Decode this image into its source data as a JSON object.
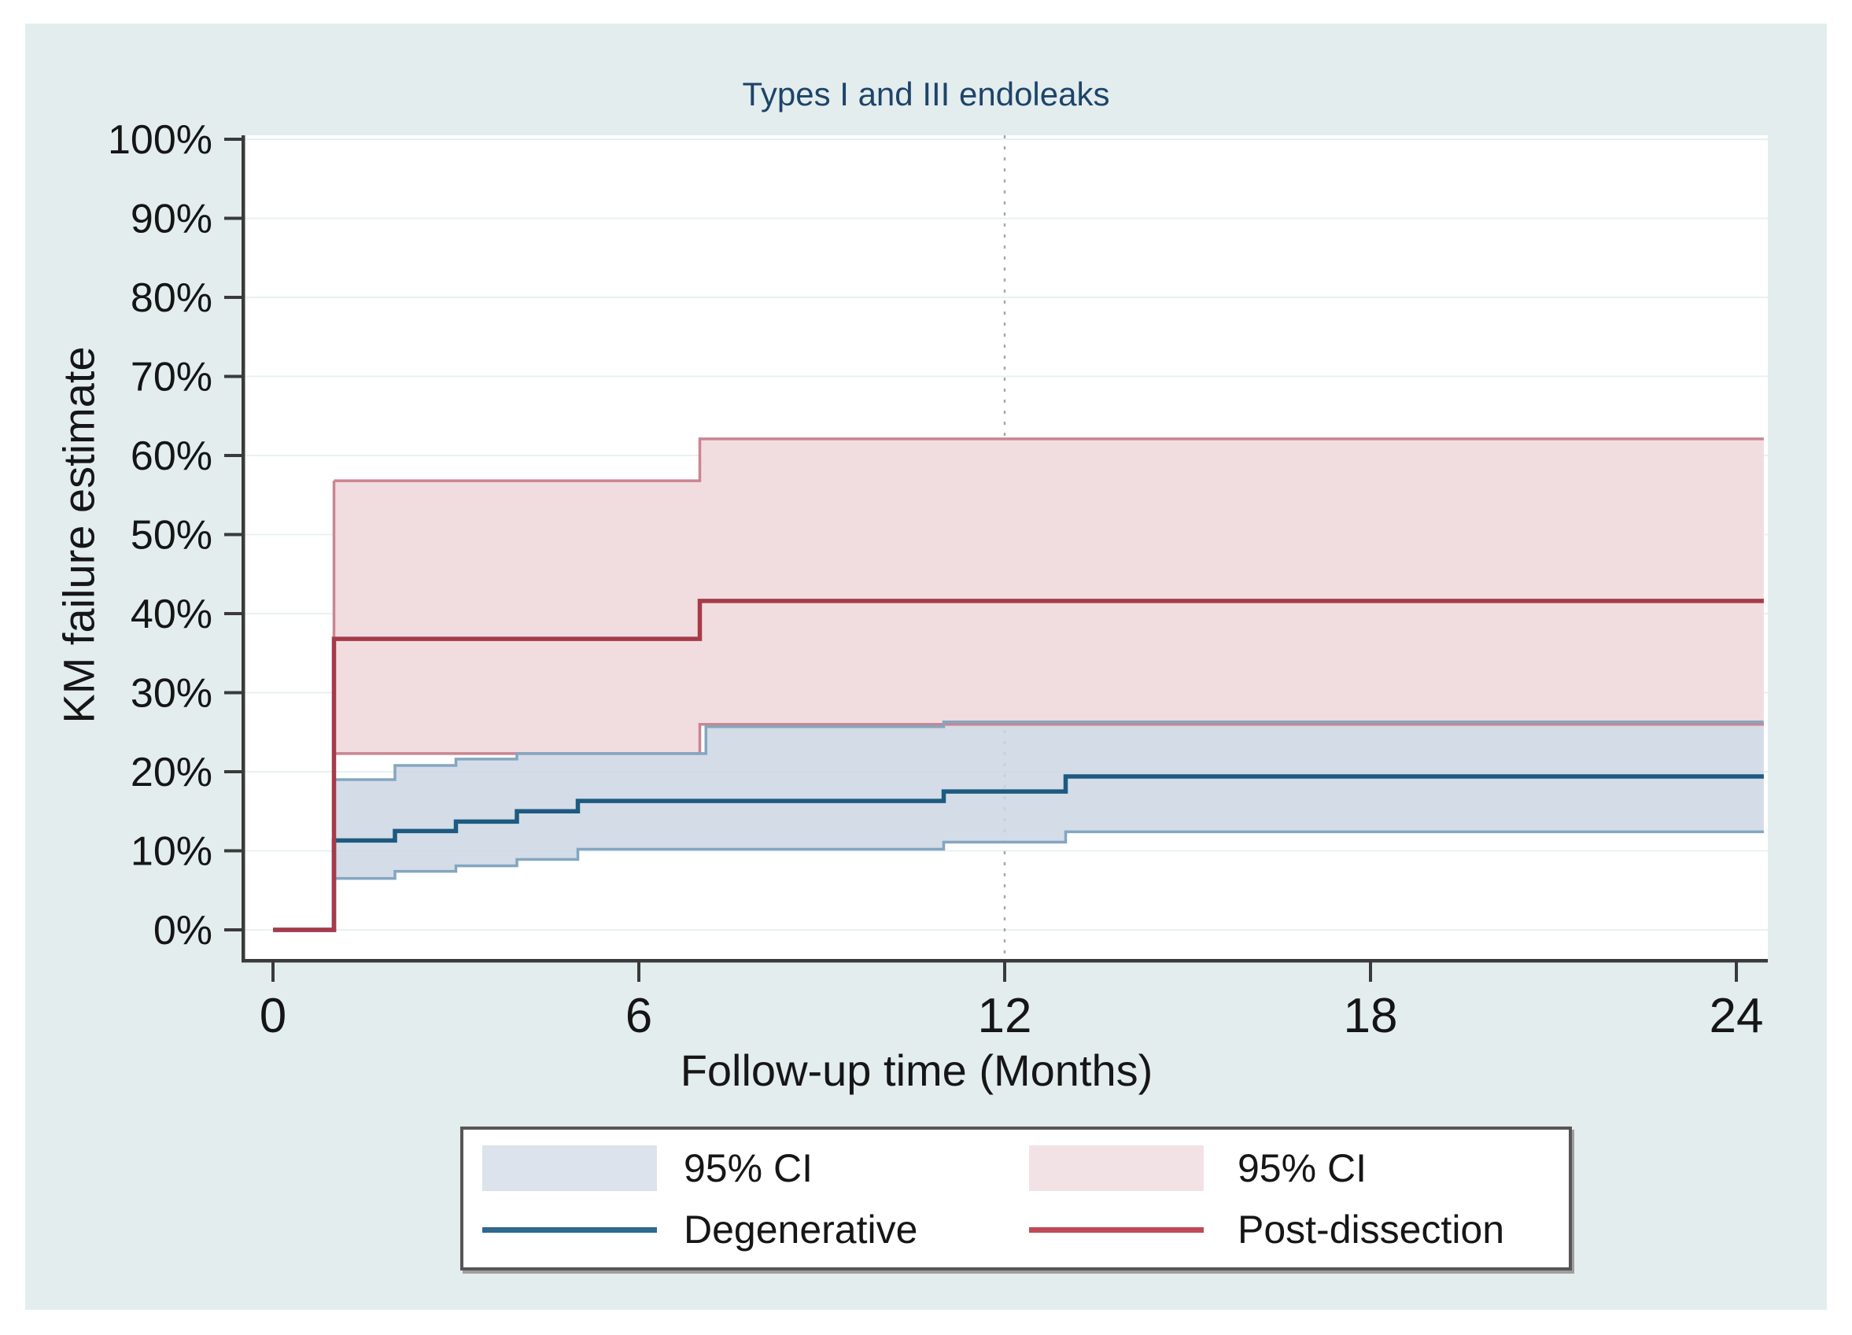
{
  "figure": {
    "title": "Types I and III endoleaks"
  },
  "axes": {
    "x_label": "Follow-up time (Months)",
    "y_label": "KM failure estimate"
  },
  "legend": {
    "items": [
      {
        "kind": "swatch",
        "label": "95% CI",
        "color": "#dce3ec"
      },
      {
        "kind": "swatch",
        "label": "95% CI",
        "color": "#f3e2e5"
      },
      {
        "kind": "line",
        "label": "Degenerative",
        "color": "#2f6890"
      },
      {
        "kind": "line",
        "label": "Post-dissection",
        "color": "#bf4a57"
      }
    ]
  },
  "chart_data": {
    "type": "line",
    "subtype": "kaplan-meier-step-with-ci",
    "title": "Types I and III endoleaks",
    "xlabel": "Follow-up time (Months)",
    "ylabel": "KM failure estimate",
    "xlim": [
      0,
      24.45
    ],
    "ylim": [
      0,
      100
    ],
    "grid": {
      "horizontal": true,
      "vertical_dotted_at_x": 12
    },
    "x_ticks": [
      {
        "value": 0,
        "label": "0"
      },
      {
        "value": 6,
        "label": "6"
      },
      {
        "value": 12,
        "label": "12"
      },
      {
        "value": 18,
        "label": "18"
      },
      {
        "value": 24,
        "label": "24"
      }
    ],
    "y_ticks": [
      {
        "value": 0,
        "label": "0%"
      },
      {
        "value": 10,
        "label": "10%"
      },
      {
        "value": 20,
        "label": "20%"
      },
      {
        "value": 30,
        "label": "30%"
      },
      {
        "value": 40,
        "label": "40%"
      },
      {
        "value": 50,
        "label": "50%"
      },
      {
        "value": 60,
        "label": "60%"
      },
      {
        "value": 70,
        "label": "70%"
      },
      {
        "value": 80,
        "label": "80%"
      },
      {
        "value": 90,
        "label": "90%"
      },
      {
        "value": 100,
        "label": "100%"
      }
    ],
    "series": [
      {
        "name": "Degenerative",
        "line_color": "#1d5a80",
        "ci_edge_color": "#84a6c0",
        "ci_fill_color": "rgba(203,214,227,0.85)",
        "line": [
          [
            0,
            0
          ],
          [
            1,
            11.3
          ],
          [
            2,
            12.5
          ],
          [
            3,
            13.7
          ],
          [
            4,
            15.0
          ],
          [
            5,
            16.3
          ],
          [
            11,
            17.5
          ],
          [
            13,
            19.4
          ],
          [
            24.45,
            19.4
          ]
        ],
        "ci_upper": [
          [
            1,
            19.0
          ],
          [
            2,
            20.8
          ],
          [
            3,
            21.6
          ],
          [
            4,
            22.3
          ],
          [
            7.1,
            25.7
          ],
          [
            11,
            26.3
          ],
          [
            24.45,
            26.3
          ]
        ],
        "ci_lower": [
          [
            1,
            6.5
          ],
          [
            2,
            7.4
          ],
          [
            3,
            8.1
          ],
          [
            4,
            8.9
          ],
          [
            5,
            10.2
          ],
          [
            11,
            11.1
          ],
          [
            13,
            12.4
          ],
          [
            24.45,
            12.4
          ]
        ]
      },
      {
        "name": "Post-dissection",
        "line_color": "#a63b49",
        "ci_edge_color": "#ca8591",
        "ci_fill_color": "#f1dde0",
        "line": [
          [
            0,
            0
          ],
          [
            1,
            36.8
          ],
          [
            7,
            41.6
          ],
          [
            24.45,
            41.6
          ]
        ],
        "ci_upper": [
          [
            1,
            56.8
          ],
          [
            7,
            62.1
          ],
          [
            24.45,
            62.1
          ]
        ],
        "ci_lower": [
          [
            1,
            22.3
          ],
          [
            7,
            26.0
          ],
          [
            24.45,
            26.0
          ]
        ]
      }
    ]
  }
}
